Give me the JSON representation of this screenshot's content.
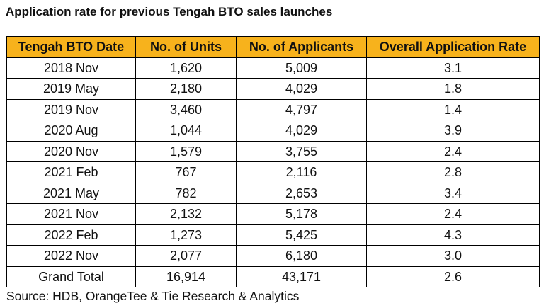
{
  "title": "Application rate for previous Tengah BTO sales launches",
  "table": {
    "columns": [
      "Tengah BTO Date",
      "No. of Units",
      "No. of Applicants",
      "Overall Application Rate"
    ],
    "rows": [
      [
        "2018 Nov",
        "1,620",
        "5,009",
        "3.1"
      ],
      [
        "2019 May",
        "2,180",
        "4,029",
        "1.8"
      ],
      [
        "2019 Nov",
        "3,460",
        "4,797",
        "1.4"
      ],
      [
        "2020 Aug",
        "1,044",
        "4,029",
        "3.9"
      ],
      [
        "2020 Nov",
        "1,579",
        "3,755",
        "2.4"
      ],
      [
        "2021 Feb",
        "767",
        "2,116",
        "2.8"
      ],
      [
        "2021 May",
        "782",
        "2,653",
        "3.4"
      ],
      [
        "2021 Nov",
        "2,132",
        "5,178",
        "2.4"
      ],
      [
        "2022 Feb",
        "1,273",
        "5,425",
        "4.3"
      ],
      [
        "2022 Nov",
        "2,077",
        "6,180",
        "3.0"
      ],
      [
        "Grand Total",
        "16,914",
        "43,171",
        "2.6"
      ]
    ]
  },
  "source": "Source: HDB, OrangeTee & Tie Research & Analytics",
  "colors": {
    "header_fill": "#f7b21c",
    "border": "#000000"
  }
}
